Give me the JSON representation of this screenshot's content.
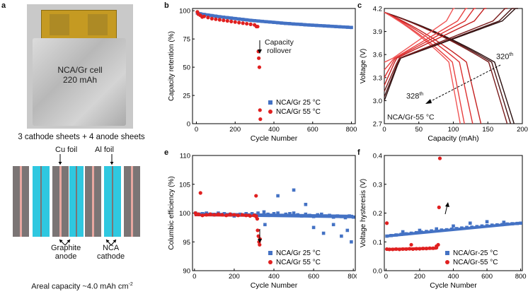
{
  "panel_labels": {
    "a": "a",
    "b": "b",
    "c": "c",
    "e": "e",
    "f": "f"
  },
  "photo": {
    "label1": "NCA/Gr cell",
    "label2": "220 mAh"
  },
  "schematic": {
    "title": "3 cathode sheets + 4 anode sheets",
    "cu_foil": "Cu foil",
    "al_foil": "Al foil",
    "graphite1": "Graphite",
    "graphite2": "anode",
    "nca1": "NCA",
    "nca2": "cathode",
    "areal_prefix": "Areal capacity ~4.0 mAh cm",
    "areal_sup": "-2"
  },
  "colors": {
    "blue": "#4472c4",
    "red": "#e02020",
    "gray": "#7b7575",
    "pink": "#e8a7a0",
    "cyan": "#2fc8e0"
  },
  "chart_data": [
    {
      "id": "b",
      "type": "scatter",
      "xlabel": "Cycle Number",
      "ylabel": "Capacity retention (%)",
      "xlim": [
        -20,
        820
      ],
      "ylim": [
        0,
        102
      ],
      "xticks": [
        0,
        200,
        400,
        600,
        800
      ],
      "yticks": [
        0,
        25,
        50,
        75,
        100
      ],
      "annotation": {
        "text1": "Capacity",
        "text2": "rollover"
      },
      "legend": "bottom-right",
      "series": [
        {
          "name": "NCA/Gr 25 °C",
          "color": "#4472c4",
          "x": [
            5,
            20,
            40,
            60,
            80,
            100,
            120,
            140,
            160,
            180,
            200,
            220,
            240,
            260,
            280,
            300,
            320,
            340,
            360,
            380,
            400,
            420,
            440,
            460,
            480,
            500,
            520,
            540,
            560,
            580,
            600,
            620,
            640,
            660,
            680,
            700,
            720,
            740,
            760,
            780,
            800
          ],
          "y": [
            98,
            97.3,
            96.7,
            96.2,
            95.7,
            95.2,
            94.7,
            94.3,
            93.9,
            93.5,
            93.1,
            92.7,
            92.3,
            91.9,
            91.5,
            91.2,
            90.9,
            90.6,
            90.3,
            90,
            89.7,
            89.4,
            89.1,
            88.8,
            88.6,
            88.3,
            88.1,
            87.9,
            87.6,
            87.4,
            87.2,
            87,
            86.8,
            86.6,
            86.4,
            86.2,
            86,
            85.8,
            85.6,
            85.4,
            85.2
          ]
        },
        {
          "name": "NCA/Gr 55 °C",
          "color": "#e02020",
          "x": [
            5,
            10,
            20,
            30,
            40,
            60,
            80,
            100,
            120,
            140,
            160,
            180,
            200,
            220,
            240,
            260,
            280,
            300,
            310,
            316,
            320,
            322,
            325,
            328,
            330
          ],
          "y": [
            99,
            97,
            96,
            94.5,
            95,
            94,
            93,
            92.5,
            92,
            91.5,
            91,
            90.5,
            90,
            89.5,
            89,
            88.5,
            88,
            87.5,
            86,
            86,
            64,
            58,
            50,
            12,
            4
          ]
        }
      ]
    },
    {
      "id": "c",
      "type": "line",
      "xlabel": "Capacity (mAh)",
      "ylabel": "Voltage (V)",
      "xlim": [
        0,
        200
      ],
      "ylim": [
        2.7,
        4.2
      ],
      "xticks": [
        0,
        50,
        100,
        150,
        200
      ],
      "yticks": [
        2.7,
        3.0,
        3.3,
        3.6,
        3.9,
        4.2
      ],
      "labels": {
        "top": "320",
        "top_sup": "th",
        "bottom": "328",
        "bottom_sup": "th",
        "condition": "NCA/Gr-55 °C"
      },
      "discharge_caps": [
        188,
        183,
        178,
        140,
        128,
        116,
        110
      ],
      "discharge_colors": [
        "#2a0f0f",
        "#4a1515",
        "#7a1c1c",
        "#c42020",
        "#dd3030",
        "#e84040",
        "#f05555"
      ],
      "charge_caps": [
        190,
        185,
        175,
        145,
        130,
        118,
        100
      ],
      "charge_starts": [
        3.0,
        3.05,
        3.12,
        3.2,
        3.3,
        3.4,
        3.5
      ]
    },
    {
      "id": "e",
      "type": "scatter",
      "xlabel": "Cycle Number",
      "ylabel": "Columbic efficiency (%)",
      "xlim": [
        -10,
        810
      ],
      "ylim": [
        90,
        110
      ],
      "xticks": [
        0,
        200,
        400,
        600,
        800
      ],
      "yticks": [
        90,
        95,
        100,
        105,
        110
      ],
      "legend": "bottom-right",
      "series": [
        {
          "name": "NCA/Gr 25 °C",
          "color": "#4472c4",
          "x": [
            5,
            20,
            40,
            60,
            80,
            100,
            120,
            150,
            180,
            200,
            230,
            260,
            290,
            320,
            350,
            370,
            400,
            420,
            440,
            460,
            480,
            500,
            520,
            540,
            560,
            580,
            600,
            620,
            640,
            660,
            680,
            700,
            720,
            740,
            760,
            780,
            800,
            355,
            420,
            500,
            560,
            600,
            650,
            700,
            740,
            770,
            790
          ],
          "y": [
            100,
            99.8,
            99.9,
            100,
            99.8,
            99.7,
            100,
            99.9,
            99.8,
            99.5,
            99.8,
            99.9,
            99.9,
            100,
            100.2,
            99.8,
            99.9,
            100,
            99.6,
            99.8,
            99.9,
            100,
            99.7,
            99.5,
            99.8,
            99.6,
            99.4,
            99.7,
            99.8,
            99.5,
            99.6,
            99.3,
            99.5,
            99.4,
            99.2,
            99.5,
            99.3,
            98,
            103,
            104,
            101.5,
            97.5,
            96.5,
            98,
            96,
            97,
            95
          ]
        },
        {
          "name": "NCA/Gr 55 °C",
          "color": "#e02020",
          "x": [
            5,
            20,
            40,
            60,
            80,
            100,
            120,
            140,
            160,
            180,
            200,
            220,
            240,
            260,
            280,
            300,
            310,
            316,
            318,
            322,
            325,
            328,
            330,
            30,
            310
          ],
          "y": [
            100,
            99.8,
            99.6,
            99.7,
            99.8,
            99.7,
            99.8,
            99.7,
            99.6,
            99.8,
            99.7,
            99.6,
            99.7,
            99.6,
            99.5,
            99.6,
            99.4,
            99,
            97,
            96,
            95,
            94.5,
            95.5,
            103.5,
            103
          ]
        }
      ]
    },
    {
      "id": "f",
      "type": "scatter",
      "xlabel": "Cycle Number",
      "ylabel": "Voltage hysteresis (V)",
      "xlim": [
        -10,
        810
      ],
      "ylim": [
        0,
        0.4
      ],
      "xticks": [
        0,
        200,
        400,
        600,
        800
      ],
      "yticks": [
        0.0,
        0.1,
        0.2,
        0.3,
        0.4
      ],
      "legend": "bottom-right",
      "series": [
        {
          "name": "NCA/Gr-25 °C",
          "color": "#4472c4",
          "x": [
            5,
            30,
            60,
            90,
            120,
            150,
            180,
            210,
            240,
            270,
            300,
            330,
            360,
            390,
            420,
            450,
            480,
            510,
            540,
            570,
            600,
            630,
            660,
            690,
            720,
            750,
            780,
            800,
            100,
            200,
            300,
            400,
            500,
            600,
            700
          ],
          "y": [
            0.12,
            0.122,
            0.124,
            0.126,
            0.128,
            0.13,
            0.132,
            0.134,
            0.136,
            0.138,
            0.14,
            0.141,
            0.142,
            0.144,
            0.146,
            0.148,
            0.15,
            0.151,
            0.153,
            0.155,
            0.156,
            0.158,
            0.159,
            0.16,
            0.162,
            0.163,
            0.164,
            0.165,
            0.135,
            0.14,
            0.145,
            0.155,
            0.165,
            0.17,
            0.168
          ]
        },
        {
          "name": "NCA/Gr-55 °C",
          "color": "#e02020",
          "x": [
            5,
            20,
            40,
            60,
            80,
            100,
            120,
            140,
            160,
            180,
            200,
            220,
            240,
            260,
            280,
            300,
            310,
            315,
            320,
            5,
            150,
            300
          ],
          "y": [
            0.075,
            0.074,
            0.074,
            0.075,
            0.074,
            0.075,
            0.075,
            0.076,
            0.075,
            0.076,
            0.076,
            0.077,
            0.077,
            0.078,
            0.078,
            0.08,
            0.09,
            0.22,
            0.39,
            0.165,
            0.09,
            0.085
          ]
        }
      ]
    }
  ]
}
